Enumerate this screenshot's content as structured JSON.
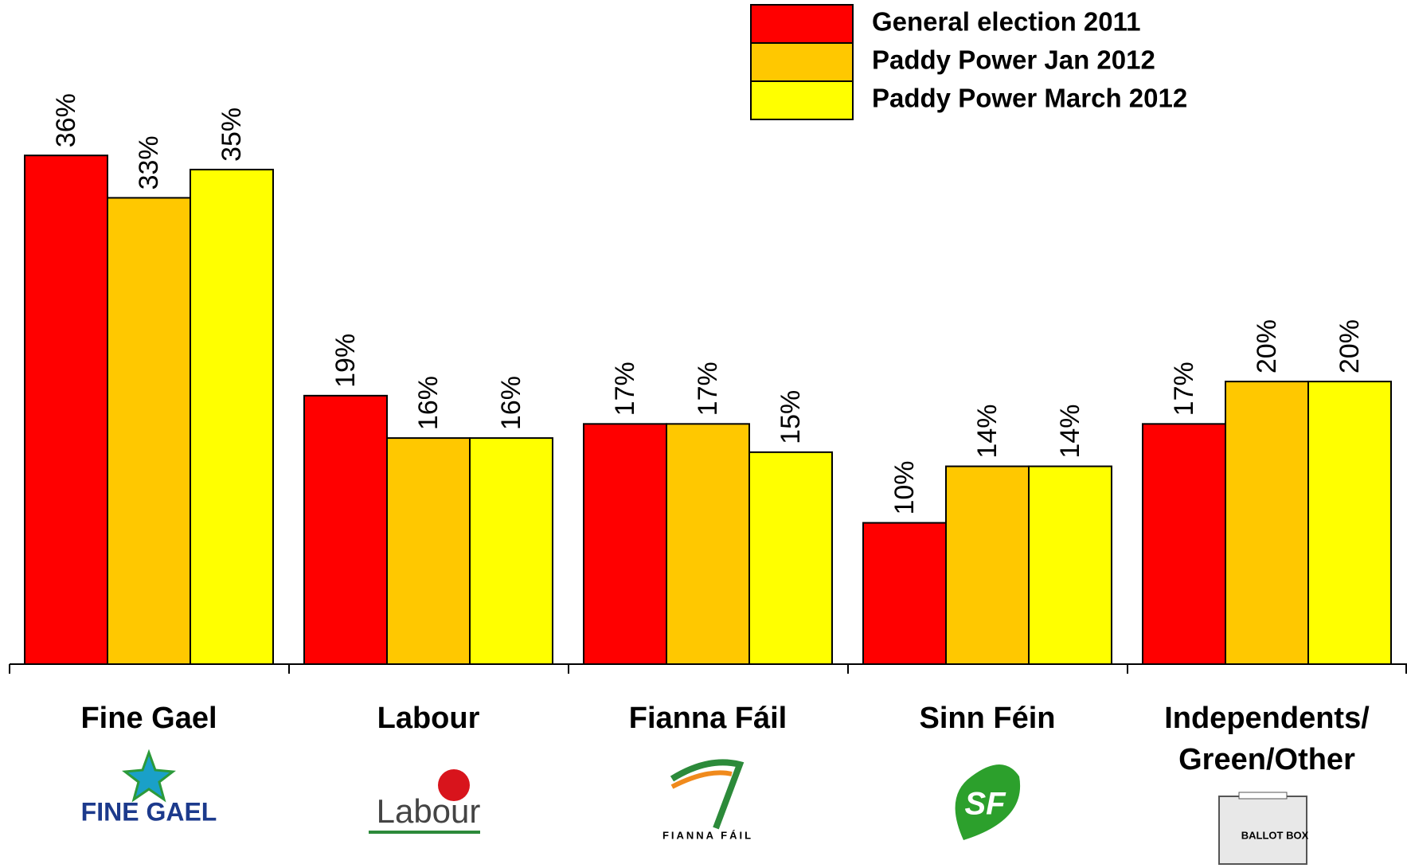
{
  "chart_data": {
    "type": "bar",
    "categories": [
      "Fine Gael",
      "Labour",
      "Fianna Fáil",
      "Sinn Féin",
      "Independents/ Green/Other"
    ],
    "series": [
      {
        "name": "General election 2011",
        "color": "#ff0000",
        "values": [
          36,
          19,
          17,
          10,
          17
        ],
        "value_labels": [
          "36%",
          "19%",
          "17%",
          "10%",
          "17%"
        ]
      },
      {
        "name": "Paddy Power Jan 2012",
        "color": "#ffc800",
        "values": [
          33,
          16,
          17,
          14,
          20
        ],
        "value_labels": [
          "33%",
          "16%",
          "17%",
          "14%",
          "20%"
        ]
      },
      {
        "name": "Paddy Power March 2012",
        "color": "#ffff00",
        "values": [
          35,
          16,
          15,
          14,
          20
        ],
        "value_labels": [
          "35%",
          "16%",
          "15%",
          "14%",
          "20%"
        ]
      }
    ],
    "ylim": [
      0,
      47
    ],
    "legend": "top-right",
    "logo_texts": [
      "FINE GAEL",
      "Labour",
      "FIANNA FÁIL",
      "SF",
      "BALLOT BOX"
    ]
  }
}
